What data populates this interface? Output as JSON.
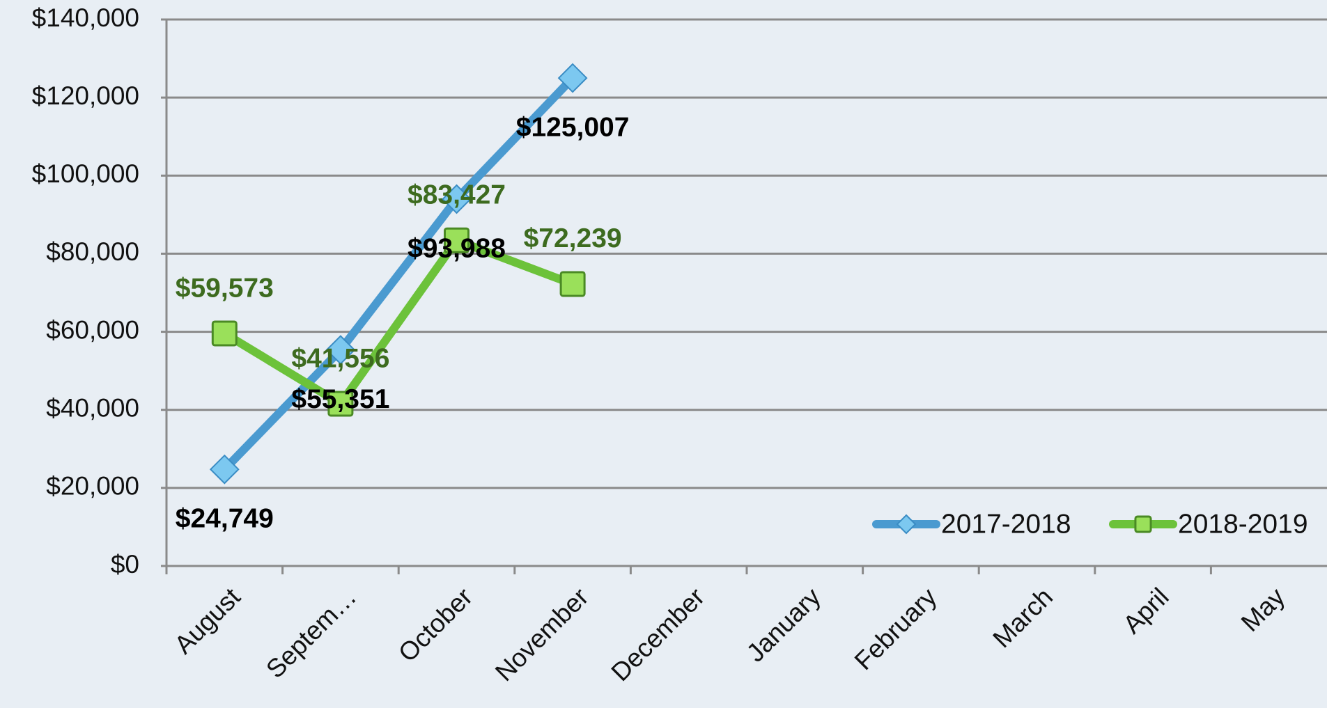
{
  "chart_data": {
    "type": "line",
    "categories": [
      "August",
      "Septem…",
      "October",
      "November",
      "December",
      "January",
      "February",
      "March",
      "April",
      "May"
    ],
    "series": [
      {
        "name": "2017-2018",
        "color": "#4a9ad0",
        "marker": "diamond",
        "label_color": "#000000",
        "values": [
          24749,
          55351,
          93988,
          125007,
          null,
          null,
          null,
          null,
          null,
          null
        ],
        "value_labels": [
          "$24,749",
          "$55,351",
          "$93,988",
          "$125,007",
          null,
          null,
          null,
          null,
          null,
          null
        ]
      },
      {
        "name": "2018-2019",
        "color": "#6cc23a",
        "marker": "square",
        "label_color": "#3d6b1f",
        "values": [
          59573,
          41556,
          83427,
          72239,
          null,
          null,
          null,
          null,
          null,
          null
        ],
        "value_labels": [
          "$59,573",
          "$41,556",
          "$83,427",
          "$72,239",
          null,
          null,
          null,
          null,
          null,
          null
        ]
      }
    ],
    "ylim": [
      0,
      140000
    ],
    "yticks": [
      {
        "value": 0,
        "label": "$0"
      },
      {
        "value": 20000,
        "label": "$20,000"
      },
      {
        "value": 40000,
        "label": "$40,000"
      },
      {
        "value": 60000,
        "label": "$60,000"
      },
      {
        "value": 80000,
        "label": "$80,000"
      },
      {
        "value": 100000,
        "label": "$100,000"
      },
      {
        "value": 120000,
        "label": "$120,000"
      },
      {
        "value": 140000,
        "label": "$140,000"
      }
    ],
    "grid": true,
    "legend": "lower right"
  }
}
